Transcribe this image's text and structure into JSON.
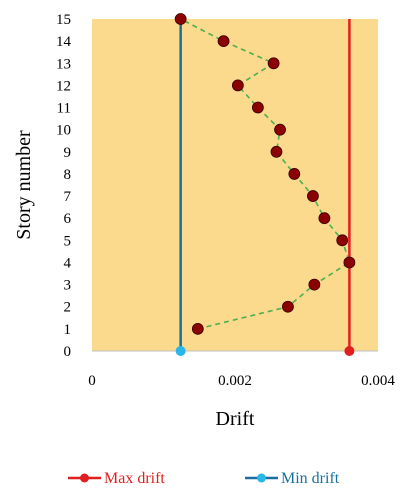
{
  "chart_data": {
    "type": "scatter",
    "xlabel": "Drift",
    "ylabel": "Story number",
    "xlim": [
      0,
      0.004
    ],
    "ylim": [
      0,
      15
    ],
    "x_ticks": [
      "0",
      "0.002",
      "0.004"
    ],
    "y_ticks": [
      "0",
      "1",
      "2",
      "3",
      "4",
      "5",
      "6",
      "7",
      "8",
      "9",
      "10",
      "11",
      "12",
      "13",
      "14",
      "15"
    ],
    "plot_background": "#fbd98d",
    "grid": false,
    "legend_position": "bottom",
    "drift_profile": {
      "color": "#8b0000",
      "line_color": "#4caf50",
      "line_style": "dashed",
      "points": [
        {
          "story": 1,
          "drift": 0.00148
        },
        {
          "story": 2,
          "drift": 0.00274
        },
        {
          "story": 3,
          "drift": 0.00311
        },
        {
          "story": 4,
          "drift": 0.0036
        },
        {
          "story": 5,
          "drift": 0.0035
        },
        {
          "story": 6,
          "drift": 0.00325
        },
        {
          "story": 7,
          "drift": 0.00309
        },
        {
          "story": 8,
          "drift": 0.00283
        },
        {
          "story": 9,
          "drift": 0.00258
        },
        {
          "story": 10,
          "drift": 0.00263
        },
        {
          "story": 11,
          "drift": 0.00232
        },
        {
          "story": 12,
          "drift": 0.00204
        },
        {
          "story": 13,
          "drift": 0.00254
        },
        {
          "story": 14,
          "drift": 0.00184
        },
        {
          "story": 15,
          "drift": 0.00124
        }
      ]
    },
    "series": [
      {
        "name": "Max drift",
        "color": "#e02020",
        "x": [
          0.0036,
          0.0036
        ],
        "y": [
          0,
          15
        ]
      },
      {
        "name": "Min drift",
        "color": "#1a6fa0",
        "marker_color": "#29b6e8",
        "x": [
          0.00124,
          0.00124
        ],
        "y": [
          0,
          15
        ]
      }
    ]
  }
}
